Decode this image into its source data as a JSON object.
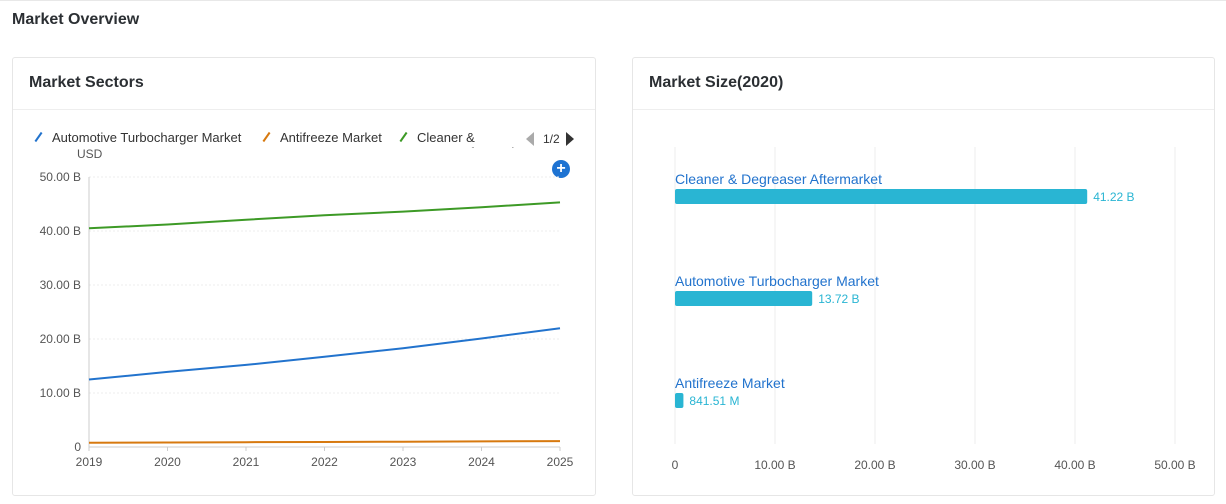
{
  "page": {
    "title": "Market Overview"
  },
  "panels": {
    "sectors": {
      "title": "Market Sectors",
      "pager": "1/2"
    },
    "size": {
      "title": "Market Size(2020)"
    }
  },
  "colors": {
    "blue": "#2273cd",
    "orange": "#d7790f",
    "green": "#3d9a26",
    "bar": "#29b5d3",
    "accent": "#1e73d2"
  },
  "chart_data": [
    {
      "type": "line",
      "title": "Market Sectors",
      "ylabel": "USD",
      "xlabel": "",
      "x": [
        "2019",
        "2020",
        "2021",
        "2022",
        "2023",
        "2024",
        "2025"
      ],
      "ylim": [
        0,
        50
      ],
      "yticks": [
        "0",
        "10.00 B",
        "20.00 B",
        "30.00 B",
        "40.00 B",
        "50.00 B"
      ],
      "legend_position": "top",
      "legend": [
        "Automotive Turbocharger Market",
        "Antifreeze Market",
        "Cleaner & Degreaser Aftermarket"
      ],
      "series": [
        {
          "name": "Automotive Turbocharger Market",
          "color": "#2273cd",
          "values": [
            12.5,
            13.9,
            15.2,
            16.7,
            18.3,
            20.1,
            22.0
          ]
        },
        {
          "name": "Antifreeze Market",
          "color": "#d7790f",
          "values": [
            0.8,
            0.84,
            0.88,
            0.93,
            0.98,
            1.03,
            1.09
          ]
        },
        {
          "name": "Cleaner & Degreaser Aftermarket",
          "color": "#3d9a26",
          "values": [
            40.5,
            41.2,
            42.1,
            42.9,
            43.6,
            44.4,
            45.3
          ]
        }
      ]
    },
    {
      "type": "bar",
      "orientation": "horizontal",
      "title": "Market Size(2020)",
      "xlim": [
        0,
        50
      ],
      "xticks": [
        "0",
        "10.00 B",
        "20.00 B",
        "30.00 B",
        "40.00 B",
        "50.00 B"
      ],
      "categories": [
        "Cleaner & Degreaser Aftermarket",
        "Automotive Turbocharger Market",
        "Antifreeze Market"
      ],
      "values": [
        41.22,
        13.72,
        0.84151
      ],
      "value_labels": [
        "41.22 B",
        "13.72 B",
        "841.51 M"
      ]
    }
  ]
}
